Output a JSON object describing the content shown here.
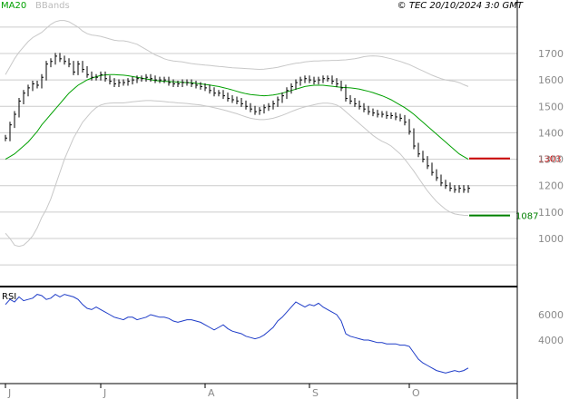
{
  "header": {
    "legend_ma": "MA20",
    "legend_bb": "BBands",
    "copyright": "© TEC 20/10/2024 3:0 GMT"
  },
  "colors": {
    "ma": "#00a000",
    "bbands": "#c8c8c8",
    "price": "#000000",
    "rsi": "#1e3cc8",
    "grid": "#cccccc",
    "border": "#000000",
    "resistance": "#cc0000",
    "support": "#008000",
    "muted_text": "#888888"
  },
  "chart_data": [
    {
      "type": "line",
      "name": "price",
      "ylim": [
        880,
        1880
      ],
      "yticks": [
        1000,
        1100,
        1200,
        1300,
        1400,
        1500,
        1600,
        1700
      ],
      "xticks": [
        {
          "label": "J",
          "pos": 0.0
        },
        {
          "label": "J",
          "pos": 21
        },
        {
          "label": "A",
          "pos": 44
        },
        {
          "label": "S",
          "pos": 67
        },
        {
          "label": "O",
          "pos": 89
        }
      ],
      "x_count": 103,
      "series": [
        {
          "values": [
            1380,
            1430,
            1470,
            1520,
            1550,
            1570,
            1585,
            1580,
            1610,
            1660,
            1670,
            1690,
            1680,
            1670,
            1660,
            1630,
            1660,
            1640,
            1620,
            1610,
            1610,
            1620,
            1605,
            1595,
            1585,
            1590,
            1590,
            1595,
            1600,
            1605,
            1605,
            1610,
            1605,
            1600,
            1600,
            1600,
            1590,
            1585,
            1585,
            1590,
            1590,
            1585,
            1580,
            1575,
            1570,
            1560,
            1550,
            1550,
            1540,
            1530,
            1525,
            1520,
            1510,
            1500,
            1490,
            1480,
            1485,
            1495,
            1500,
            1510,
            1525,
            1540,
            1560,
            1575,
            1590,
            1600,
            1605,
            1600,
            1595,
            1600,
            1605,
            1605,
            1595,
            1585,
            1570,
            1530,
            1520,
            1510,
            1500,
            1490,
            1480,
            1475,
            1470,
            1470,
            1465,
            1465,
            1460,
            1455,
            1440,
            1405,
            1350,
            1320,
            1300,
            1275,
            1250,
            1230,
            1210,
            1200,
            1190,
            1185,
            1190,
            1185,
            1190
          ]
        },
        {
          "name": "MA20",
          "values": [
            1300,
            1310,
            1320,
            1335,
            1350,
            1365,
            1385,
            1405,
            1430,
            1450,
            1470,
            1490,
            1510,
            1530,
            1550,
            1565,
            1580,
            1590,
            1600,
            1607,
            1612,
            1617,
            1619,
            1620,
            1620,
            1619,
            1618,
            1616,
            1613,
            1610,
            1607,
            1604,
            1601,
            1598,
            1596,
            1595,
            1594,
            1593,
            1592,
            1591,
            1590,
            1589,
            1587,
            1585,
            1583,
            1581,
            1578,
            1575,
            1571,
            1567,
            1562,
            1557,
            1552,
            1548,
            1545,
            1543,
            1541,
            1540,
            1541,
            1543,
            1546,
            1550,
            1555,
            1560,
            1565,
            1570,
            1575,
            1578,
            1580,
            1580,
            1580,
            1578,
            1576,
            1574,
            1572,
            1571,
            1570,
            1568,
            1565,
            1561,
            1557,
            1552,
            1546,
            1540,
            1533,
            1525,
            1515,
            1505,
            1495,
            1483,
            1470,
            1455,
            1440,
            1425,
            1410,
            1395,
            1380,
            1365,
            1350,
            1335,
            1320,
            1310,
            1300
          ]
        },
        {
          "name": "BB upper",
          "values": [
            1620,
            1650,
            1680,
            1705,
            1725,
            1745,
            1760,
            1770,
            1780,
            1795,
            1810,
            1820,
            1825,
            1825,
            1820,
            1810,
            1800,
            1785,
            1775,
            1770,
            1768,
            1765,
            1760,
            1755,
            1750,
            1748,
            1748,
            1745,
            1740,
            1735,
            1725,
            1715,
            1705,
            1695,
            1688,
            1680,
            1675,
            1672,
            1670,
            1668,
            1665,
            1662,
            1660,
            1658,
            1656,
            1655,
            1653,
            1651,
            1650,
            1648,
            1646,
            1645,
            1644,
            1643,
            1642,
            1641,
            1640,
            1641,
            1643,
            1645,
            1648,
            1652,
            1656,
            1660,
            1663,
            1665,
            1668,
            1670,
            1672,
            1672,
            1673,
            1673,
            1674,
            1674,
            1675,
            1676,
            1678,
            1680,
            1684,
            1688,
            1690,
            1691,
            1690,
            1688,
            1684,
            1680,
            1675,
            1670,
            1664,
            1658,
            1650,
            1642,
            1634,
            1626,
            1618,
            1611,
            1605,
            1600,
            1597,
            1595,
            1590,
            1582,
            1575
          ]
        },
        {
          "name": "BB lower",
          "values": [
            1020,
            1000,
            975,
            970,
            975,
            990,
            1010,
            1040,
            1080,
            1110,
            1150,
            1200,
            1250,
            1300,
            1340,
            1380,
            1410,
            1440,
            1460,
            1480,
            1495,
            1505,
            1510,
            1512,
            1513,
            1513,
            1513,
            1515,
            1517,
            1519,
            1521,
            1522,
            1522,
            1521,
            1520,
            1518,
            1516,
            1515,
            1513,
            1512,
            1511,
            1509,
            1507,
            1505,
            1502,
            1499,
            1495,
            1491,
            1487,
            1482,
            1477,
            1472,
            1466,
            1460,
            1455,
            1452,
            1450,
            1450,
            1452,
            1455,
            1460,
            1466,
            1473,
            1480,
            1487,
            1493,
            1498,
            1502,
            1506,
            1510,
            1512,
            1512,
            1510,
            1505,
            1495,
            1480,
            1465,
            1450,
            1435,
            1420,
            1405,
            1390,
            1378,
            1368,
            1360,
            1350,
            1335,
            1320,
            1300,
            1278,
            1255,
            1230,
            1205,
            1180,
            1160,
            1140,
            1125,
            1110,
            1100,
            1093,
            1090,
            1088,
            1087
          ]
        }
      ],
      "annotations": [
        {
          "label": "1303",
          "value": 1303,
          "color": "resistance"
        },
        {
          "label": "1087",
          "value": 1087,
          "color": "support"
        }
      ]
    },
    {
      "type": "line",
      "name": "RSI",
      "ylim": [
        10,
        90
      ],
      "yticks": [
        {
          "value": 60,
          "label": "6000"
        },
        {
          "value": 40,
          "label": "4000"
        }
      ],
      "series": [
        {
          "name": "RSI",
          "values": [
            68,
            72,
            70,
            74,
            71,
            72,
            73,
            76,
            75,
            72,
            73,
            76,
            74,
            76,
            75,
            74,
            72,
            68,
            65,
            64,
            66,
            64,
            62,
            60,
            58,
            57,
            56,
            58,
            58,
            56,
            57,
            58,
            60,
            59,
            58,
            58,
            57,
            55,
            54,
            55,
            56,
            56,
            55,
            54,
            52,
            50,
            48,
            50,
            52,
            49,
            47,
            46,
            45,
            43,
            42,
            41,
            42,
            44,
            47,
            50,
            55,
            58,
            62,
            66,
            70,
            68,
            66,
            68,
            67,
            69,
            66,
            64,
            62,
            60,
            55,
            45,
            43,
            42,
            41,
            40,
            40,
            39,
            38,
            38,
            37,
            37,
            37,
            36,
            36,
            35,
            30,
            25,
            22,
            20,
            18,
            16,
            15,
            14,
            15,
            16,
            15,
            16,
            18
          ]
        }
      ]
    }
  ]
}
